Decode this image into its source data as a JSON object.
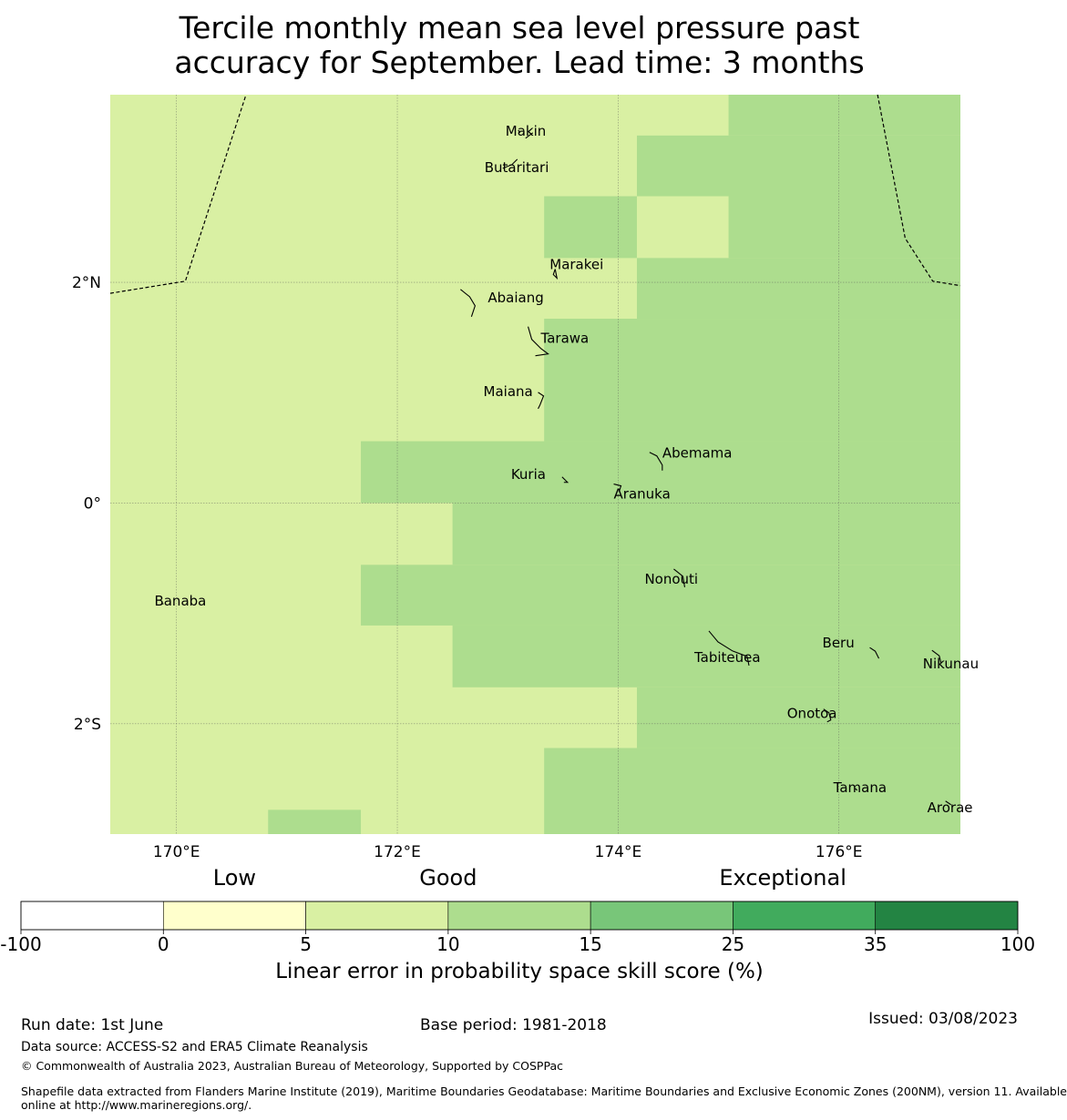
{
  "title": {
    "line1": "Tercile monthly mean sea level pressure past",
    "line2": "accuracy for September. Lead time: 3 months"
  },
  "map": {
    "extent": {
      "lon_min": 169.4,
      "lon_max": 177.1,
      "lat_min": -3.0,
      "lat_max": 3.7
    },
    "lon_ticks": [
      {
        "value": 170,
        "label": "170°E"
      },
      {
        "value": 172,
        "label": "172°E"
      },
      {
        "value": 174,
        "label": "174°E"
      },
      {
        "value": 176,
        "label": "176°E"
      }
    ],
    "lat_ticks": [
      {
        "value": 2,
        "label": "2°N"
      },
      {
        "value": 0,
        "label": "0°"
      },
      {
        "value": -2,
        "label": "2°S"
      }
    ],
    "grid": true,
    "background_category": "5-10",
    "skill_cells": [
      {
        "lon": [
          175.0,
          177.1
        ],
        "lat": [
          3.33,
          3.7
        ],
        "category": "10-15"
      },
      {
        "lon": [
          174.17,
          177.1
        ],
        "lat": [
          2.78,
          3.33
        ],
        "category": "10-15"
      },
      {
        "lon": [
          173.33,
          174.17
        ],
        "lat": [
          2.22,
          2.78
        ],
        "category": "10-15"
      },
      {
        "lon": [
          175.0,
          177.1
        ],
        "lat": [
          2.22,
          2.78
        ],
        "category": "10-15"
      },
      {
        "lon": [
          174.17,
          177.1
        ],
        "lat": [
          1.67,
          2.22
        ],
        "category": "10-15"
      },
      {
        "lon": [
          173.33,
          177.1
        ],
        "lat": [
          0.56,
          1.67
        ],
        "category": "10-15"
      },
      {
        "lon": [
          171.67,
          177.1
        ],
        "lat": [
          0.0,
          0.56
        ],
        "category": "10-15"
      },
      {
        "lon": [
          172.5,
          177.1
        ],
        "lat": [
          -0.56,
          0.0
        ],
        "category": "10-15"
      },
      {
        "lon": [
          171.67,
          177.1
        ],
        "lat": [
          -1.11,
          -0.56
        ],
        "category": "10-15"
      },
      {
        "lon": [
          172.5,
          177.1
        ],
        "lat": [
          -1.67,
          -1.11
        ],
        "category": "10-15"
      },
      {
        "lon": [
          174.17,
          177.1
        ],
        "lat": [
          -2.22,
          -1.67
        ],
        "category": "10-15"
      },
      {
        "lon": [
          173.33,
          177.1
        ],
        "lat": [
          -3.0,
          -2.22
        ],
        "category": "10-15"
      },
      {
        "lon": [
          170.83,
          171.67
        ],
        "lat": [
          -3.0,
          -2.78
        ],
        "category": "10-15"
      }
    ],
    "islands": [
      {
        "name": "Makin",
        "lon": 172.98,
        "lat": 3.33
      },
      {
        "name": "Butaritari",
        "lon": 172.79,
        "lat": 3.0
      },
      {
        "name": "Marakei",
        "lon": 173.38,
        "lat": 2.12
      },
      {
        "name": "Abaiang",
        "lon": 172.82,
        "lat": 1.82
      },
      {
        "name": "Tarawa",
        "lon": 173.3,
        "lat": 1.45
      },
      {
        "name": "Maiana",
        "lon": 172.78,
        "lat": 0.97
      },
      {
        "name": "Abemama",
        "lon": 174.4,
        "lat": 0.41
      },
      {
        "name": "Kuria",
        "lon": 173.03,
        "lat": 0.22
      },
      {
        "name": "Aranuka",
        "lon": 173.96,
        "lat": 0.04
      },
      {
        "name": "Nonouti",
        "lon": 174.24,
        "lat": -0.73
      },
      {
        "name": "Banaba",
        "lon": 169.8,
        "lat": -0.93
      },
      {
        "name": "Tabiteuea",
        "lon": 174.69,
        "lat": -1.44
      },
      {
        "name": "Beru",
        "lon": 175.85,
        "lat": -1.31
      },
      {
        "name": "Nikunau",
        "lon": 176.76,
        "lat": -1.5
      },
      {
        "name": "Onotoa",
        "lon": 175.53,
        "lat": -1.95
      },
      {
        "name": "Tamana",
        "lon": 175.95,
        "lat": -2.62
      },
      {
        "name": "Arorae",
        "lon": 176.8,
        "lat": -2.8
      }
    ],
    "boundaries": [
      [
        [
          169.4,
          1.9
        ],
        [
          170.08,
          2.01
        ],
        [
          170.63,
          3.7
        ]
      ],
      [
        [
          176.35,
          3.7
        ],
        [
          176.6,
          2.4
        ],
        [
          176.85,
          2.01
        ],
        [
          177.1,
          1.97
        ]
      ]
    ]
  },
  "colorbar": {
    "categories": [
      {
        "label": "Low",
        "center": 2.5
      },
      {
        "label": "Good",
        "center": 10
      },
      {
        "label": "Exceptional",
        "center": 28.5
      }
    ],
    "bins": [
      {
        "id": "-100-0",
        "color": "#ffffff"
      },
      {
        "id": "0-5",
        "color": "#ffffcc"
      },
      {
        "id": "5-10",
        "color": "#d9f0a3"
      },
      {
        "id": "10-15",
        "color": "#addd8e"
      },
      {
        "id": "15-25",
        "color": "#78c679"
      },
      {
        "id": "25-35",
        "color": "#41ab5d"
      },
      {
        "id": "35-100",
        "color": "#238443"
      }
    ],
    "ticks": [
      "-100",
      "0",
      "5",
      "10",
      "15",
      "25",
      "35",
      "100"
    ],
    "xlabel": "Linear error in probability space skill score (%)"
  },
  "footer": {
    "run_date": "Run date: 1st June",
    "base_period": "Base period: 1981-2018",
    "issued": "Issued: 03/08/2023",
    "data_source": "Data source: ACCESS-S2 and ERA5 Climate Reanalysis",
    "copyright": "© Commonwealth of Australia 2023, Australian Bureau of Meteorology, Supported by COSPPac",
    "shapefile_line1": "Shapefile data extracted from Flanders Marine Institute (2019), Maritime Boundaries Geodatabase: Maritime Boundaries and Exclusive Economic Zones (200NM), version 11. Available",
    "shapefile_line2": "online at http://www.marineregions.org/."
  }
}
